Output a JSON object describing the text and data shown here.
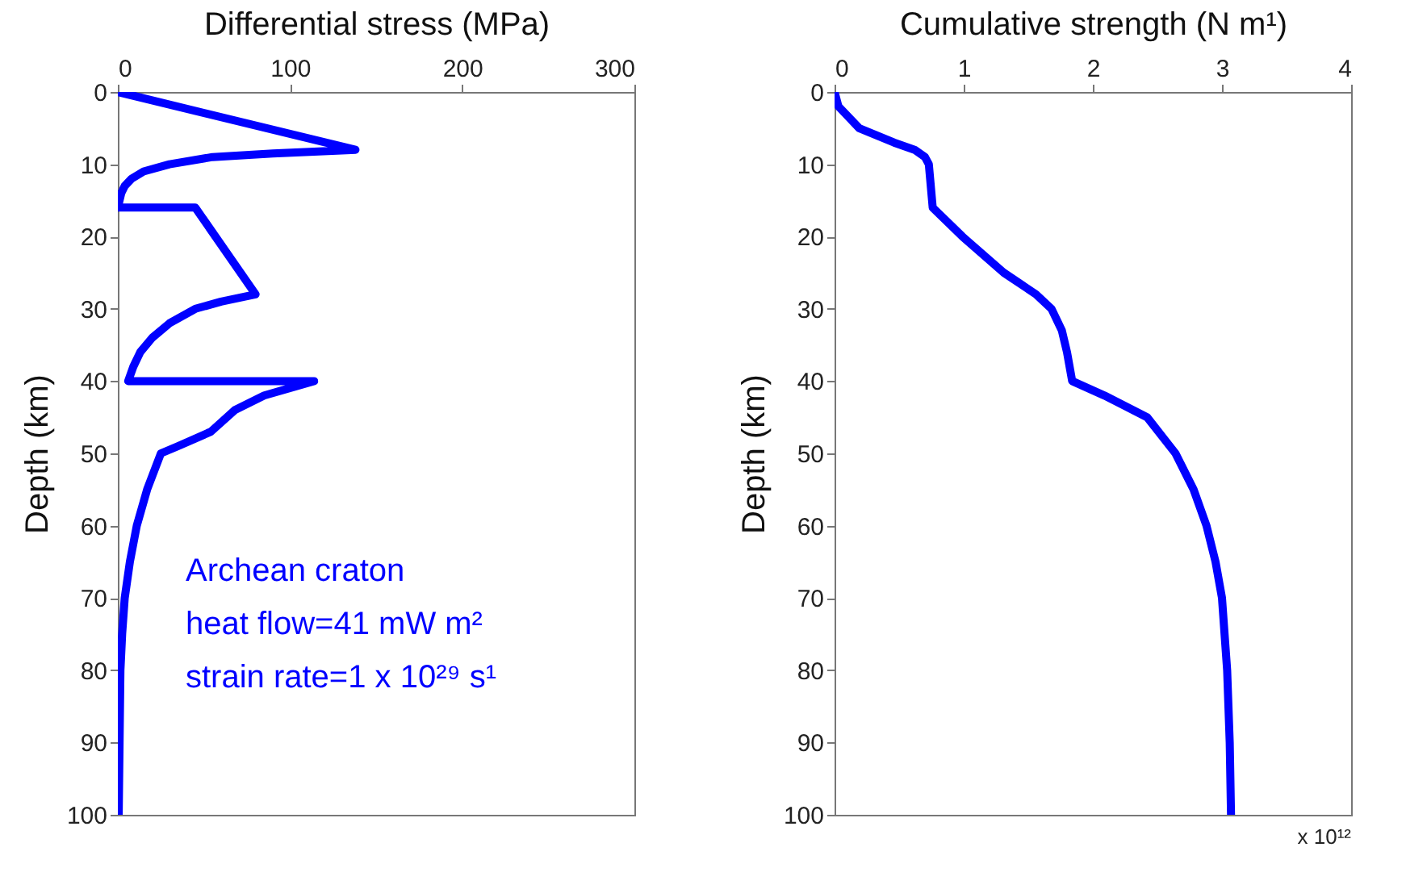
{
  "chart_data": [
    {
      "type": "line",
      "xlabel": "Differential stress (MPa)",
      "ylabel": "Depth (km)",
      "xlim": [
        0,
        300
      ],
      "xticks": [
        0,
        100,
        200,
        300
      ],
      "ylim": [
        100,
        0
      ],
      "yticks": [
        0,
        10,
        20,
        30,
        40,
        50,
        60,
        70,
        80,
        90,
        100
      ],
      "grid": false,
      "series": [
        {
          "color": "#0000ff",
          "x": [
            0,
            138,
            90,
            55,
            30,
            15,
            8,
            4,
            2,
            1,
            0,
            45,
            80,
            60,
            45,
            30,
            20,
            13,
            9,
            6,
            114,
            85,
            68,
            54,
            35,
            25,
            17,
            11,
            7,
            4,
            2.5,
            1.5,
            1,
            0.5
          ],
          "values": [
            0,
            8,
            8.5,
            9,
            10,
            11,
            12,
            13,
            14,
            15,
            16,
            16,
            28,
            29,
            30,
            32,
            34,
            36,
            38,
            40,
            40,
            42,
            44,
            47,
            49,
            50,
            55,
            60,
            65,
            70,
            75,
            80,
            90,
            100
          ]
        }
      ],
      "annotations": [
        "Archean craton",
        "heat flow=41 mW m²",
        "strain rate=1 x 10²⁹ s¹"
      ]
    },
    {
      "type": "line",
      "xlabel": "Cumulative strength (N m¹)",
      "ylabel": "Depth (km)",
      "xlim": [
        0,
        4
      ],
      "xticks": [
        0,
        1,
        2,
        3,
        4
      ],
      "ylim": [
        100,
        0
      ],
      "yticks": [
        0,
        10,
        20,
        30,
        40,
        50,
        60,
        70,
        80,
        90,
        100
      ],
      "grid": false,
      "series": [
        {
          "color": "#0000ff",
          "x": [
            0,
            0.03,
            0.19,
            0.46,
            0.62,
            0.7,
            0.73,
            0.74,
            0.76,
            0.99,
            1.31,
            1.56,
            1.68,
            1.76,
            1.8,
            1.84,
            2.09,
            2.42,
            2.64,
            2.78,
            2.88,
            2.95,
            3.0,
            3.04,
            3.06,
            3.07
          ],
          "values": [
            0,
            2,
            5,
            7,
            8,
            9,
            10,
            12,
            16,
            20,
            25,
            28,
            30,
            33,
            36,
            40,
            42,
            45,
            50,
            55,
            60,
            65,
            70,
            80,
            90,
            100
          ]
        }
      ],
      "annotations": [
        "x 10¹²"
      ]
    }
  ]
}
